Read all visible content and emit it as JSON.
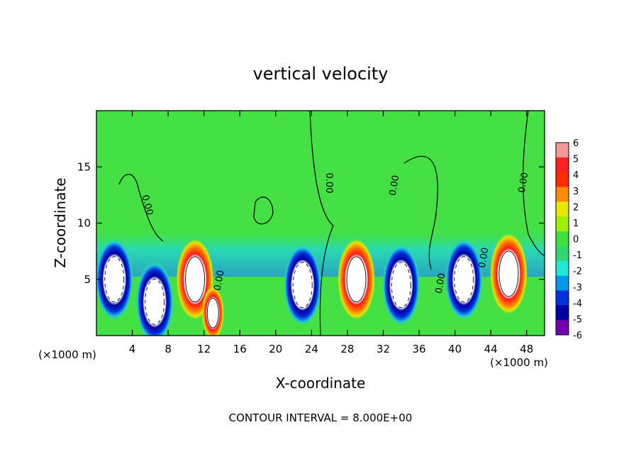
{
  "chart_data": {
    "type": "heatmap",
    "title": "vertical velocity",
    "xlabel": "X-coordinate",
    "ylabel": "Z-coordinate",
    "x_unit_left": "(×1000 m)",
    "x_unit_right": "(×1000 m)",
    "footer": "CONTOUR INTERVAL = 8.000E+00",
    "xlim": [
      0,
      50
    ],
    "ylim": [
      0,
      20
    ],
    "x_ticks": [
      4,
      8,
      12,
      16,
      20,
      24,
      28,
      32,
      36,
      40,
      44,
      48
    ],
    "y_ticks": [
      5,
      10,
      15
    ],
    "zero_contour_label": "0.00",
    "colorbar": {
      "range": [
        -6,
        6
      ],
      "ticks": [
        6,
        5,
        4,
        3,
        2,
        1,
        0,
        -1,
        -2,
        -3,
        -4,
        -5,
        -6
      ],
      "colors": [
        "#f09a9a",
        "#ff2020",
        "#ff2a00",
        "#ff8c00",
        "#e8e800",
        "#a0f000",
        "#40e040",
        "#30d870",
        "#20e8d8",
        "#0098e8",
        "#0030d8",
        "#0000a0",
        "#7000b0"
      ]
    },
    "features": [
      {
        "x": 2,
        "z": 5.0,
        "value": -6
      },
      {
        "x": 6.5,
        "z": 3.0,
        "value": -6
      },
      {
        "x": 11,
        "z": 5.0,
        "value": 6
      },
      {
        "x": 13,
        "z": 2.0,
        "value": 4
      },
      {
        "x": 23,
        "z": 4.5,
        "value": -6
      },
      {
        "x": 29,
        "z": 5.0,
        "value": 6
      },
      {
        "x": 34,
        "z": 4.5,
        "value": -6
      },
      {
        "x": 41,
        "z": 5.0,
        "value": -6
      },
      {
        "x": 46,
        "z": 5.5,
        "value": 6
      }
    ]
  }
}
